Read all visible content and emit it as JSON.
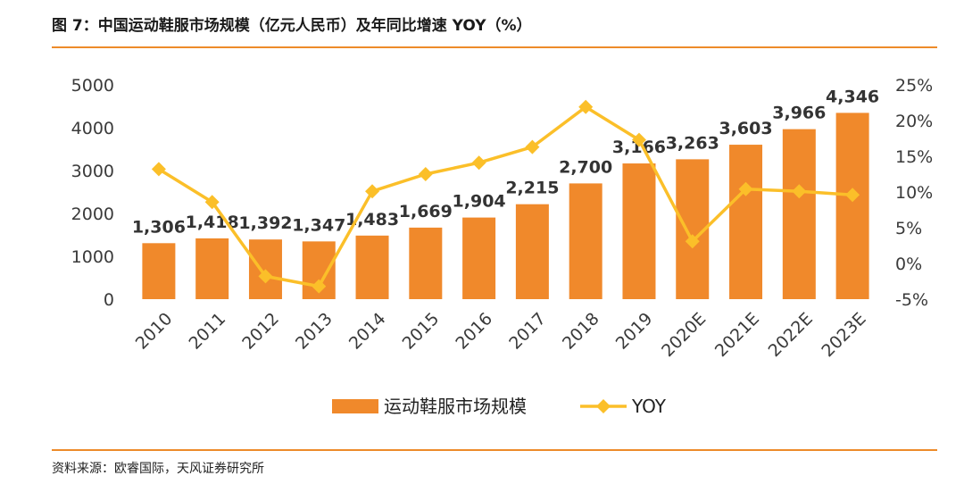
{
  "header": {
    "title": "图 7：中国运动鞋服市场规模（亿元人民币）及年同比增速 YOY（%）"
  },
  "footer": {
    "source": "资料来源：欧睿国际，天风证券研究所"
  },
  "colors": {
    "bar": "#f0892b",
    "line": "#fbbf29",
    "rule": "#ed8b2a"
  },
  "chart_data": {
    "type": "bar",
    "title": "图 7：中国运动鞋服市场规模（亿元人民币）及年同比增速 YOY（%）",
    "categories": [
      "2010",
      "2011",
      "2012",
      "2013",
      "2014",
      "2015",
      "2016",
      "2017",
      "2018",
      "2019",
      "2020E",
      "2021E",
      "2022E",
      "2023E"
    ],
    "series": [
      {
        "name": "运动鞋服市场规模",
        "type": "bar",
        "axis": "left",
        "values": [
          1306,
          1418,
          1392,
          1347,
          1483,
          1669,
          1904,
          2215,
          2700,
          3166,
          3263,
          3603,
          3966,
          4346
        ],
        "labels": [
          "1,306",
          "1,418",
          "1,392",
          "1,347",
          "1,483",
          "1,669",
          "1,904",
          "2,215",
          "2,700",
          "3,166",
          "3,263",
          "3,603",
          "3,966",
          "4,346"
        ]
      },
      {
        "name": "YOY",
        "type": "line",
        "axis": "right",
        "marker": "diamond",
        "values": [
          13.2,
          8.6,
          -1.8,
          -3.2,
          10.1,
          12.5,
          14.1,
          16.3,
          21.9,
          17.3,
          3.1,
          10.4,
          10.1,
          9.6
        ]
      }
    ],
    "y_left": {
      "ylim": [
        0,
        5000
      ],
      "ticks": [
        0,
        1000,
        2000,
        3000,
        4000,
        5000
      ],
      "tick_labels": [
        "0",
        "1000",
        "2000",
        "3000",
        "4000",
        "5000"
      ]
    },
    "y_right": {
      "ylim": [
        -5,
        25
      ],
      "ticks": [
        -5,
        0,
        5,
        10,
        15,
        20,
        25
      ],
      "tick_labels": [
        "-5%",
        "0%",
        "5%",
        "10%",
        "15%",
        "20%",
        "25%"
      ]
    },
    "grid": false,
    "legend": {
      "position": "bottom",
      "items": [
        "运动鞋服市场规模",
        "YOY"
      ]
    }
  }
}
